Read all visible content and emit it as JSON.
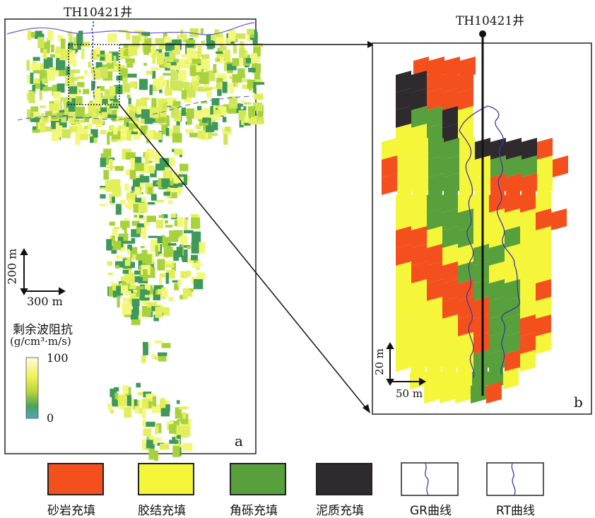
{
  "panel_a": {
    "well_label": "TH10421井",
    "panel_letter": "a",
    "scale_vertical": "200 m",
    "scale_horizontal": "300 m",
    "colorbar": {
      "title": "剩余波阻抗",
      "unit": "(g/cm³·m/s)",
      "max_label": "100",
      "min_label": "0"
    }
  },
  "panel_b": {
    "well_label": "TH10421井",
    "panel_letter": "b",
    "scale_vertical": "20 m",
    "scale_horizontal": "50 m"
  },
  "legend": [
    {
      "label": "砂岩充填",
      "color": "#f4501e"
    },
    {
      "label": "胶结充填",
      "color": "#f5f53a"
    },
    {
      "label": "角砾充填",
      "color": "#58a03c"
    },
    {
      "label": "泥质充填",
      "color": "#2e2a2e"
    },
    {
      "label": "GR曲线",
      "icon": "gr-curve-icon"
    },
    {
      "label": "RT曲线",
      "icon": "rt-curve-icon"
    }
  ],
  "colors": {
    "sandstone": "#f4501e",
    "cemented": "#f5f53a",
    "breccia": "#58a03c",
    "mud": "#2e2a2e",
    "gr_curve": "#7a3d9c",
    "rt_curve": "#3a3aa8",
    "impedance_high": "#f3f77a",
    "impedance_mid": "#a8d23c",
    "impedance_low": "#3f9a5a"
  }
}
